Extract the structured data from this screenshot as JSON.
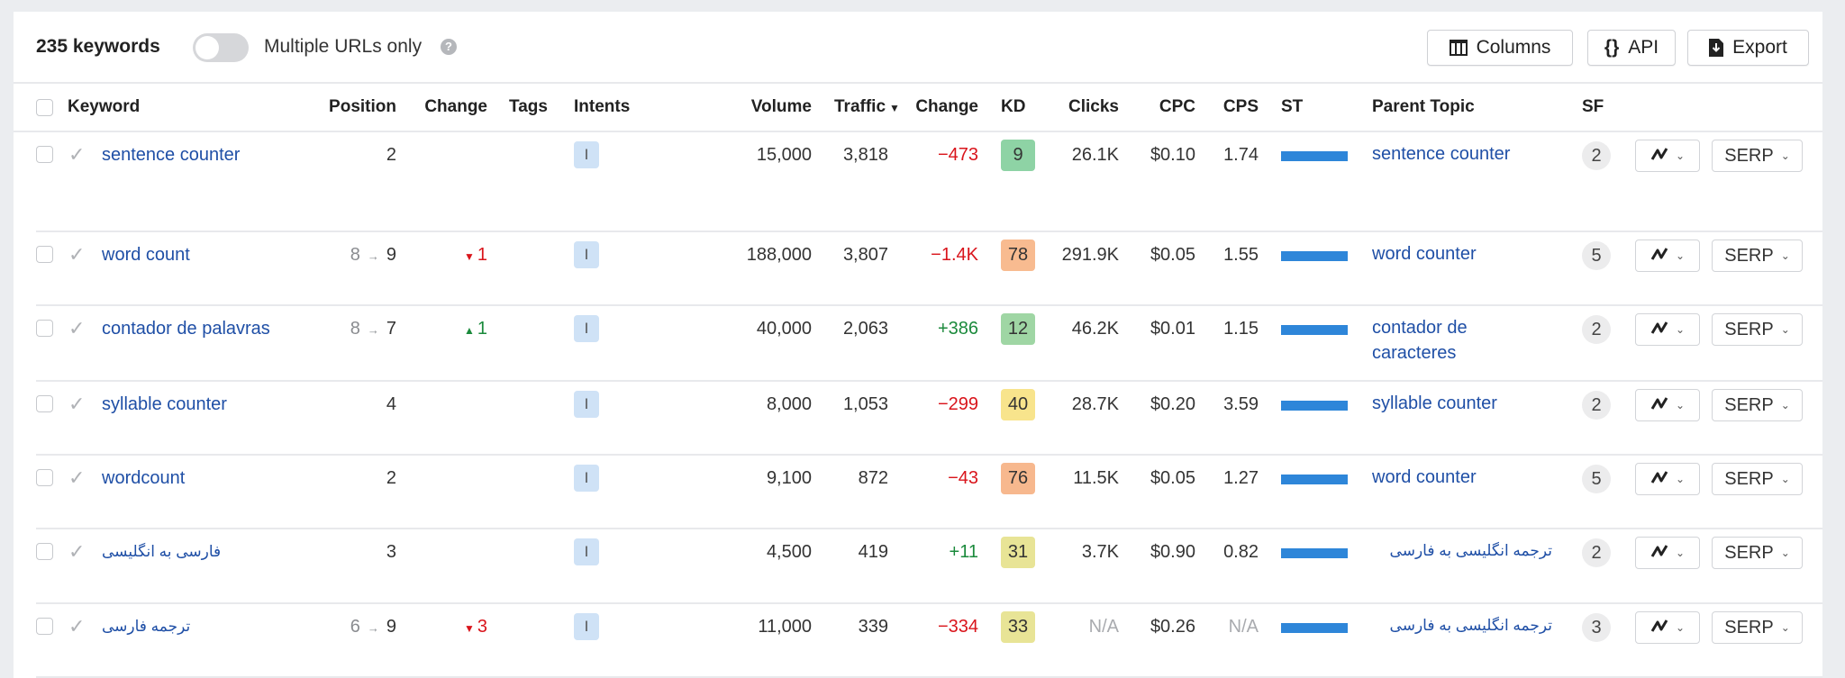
{
  "toolbar": {
    "keyword_count": "235 keywords",
    "multiple_urls_label": "Multiple URLs only",
    "multiple_urls_enabled": false,
    "help_icon": "?",
    "columns_label": "Columns",
    "api_label": "API",
    "export_label": "Export"
  },
  "columns": {
    "keyword": "Keyword",
    "position": "Position",
    "change": "Change",
    "tags": "Tags",
    "intents": "Intents",
    "volume": "Volume",
    "traffic": "Traffic",
    "traffic_sort": "▼",
    "traffic_change": "Change",
    "kd": "KD",
    "clicks": "Clicks",
    "cpc": "CPC",
    "cps": "CPS",
    "st": "ST",
    "parent_topic": "Parent Topic",
    "sf": "SF"
  },
  "colors": {
    "link": "#1f4fa6",
    "negative": "#d9141b",
    "positive": "#1b8a3c",
    "st_bar": "#2e86d9",
    "intent_badge": "#cfe2f6"
  },
  "serp_label": "SERP",
  "rows": [
    {
      "keyword": "sentence counter",
      "rtl": false,
      "prev_position": "",
      "position": "2",
      "pos_change": "",
      "pos_dir": "",
      "intent": "I",
      "volume": "15,000",
      "traffic": "3,818",
      "traffic_change": "−473",
      "traffic_dir": "down",
      "kd": "9",
      "kd_color": "#8ed3a5",
      "clicks": "26.1K",
      "cpc": "$0.10",
      "cps": "1.74",
      "parent_topic": "sentence counter",
      "sf": "2"
    },
    {
      "keyword": "word count",
      "rtl": false,
      "prev_position": "8",
      "position": "9",
      "pos_change": "1",
      "pos_dir": "down",
      "intent": "I",
      "volume": "188,000",
      "traffic": "3,807",
      "traffic_change": "−1.4K",
      "traffic_dir": "down",
      "kd": "78",
      "kd_color": "#f8bb90",
      "clicks": "291.9K",
      "cpc": "$0.05",
      "cps": "1.55",
      "parent_topic": "word counter",
      "sf": "5"
    },
    {
      "keyword": "contador de palavras",
      "rtl": false,
      "prev_position": "8",
      "position": "7",
      "pos_change": "1",
      "pos_dir": "up",
      "intent": "I",
      "volume": "40,000",
      "traffic": "2,063",
      "traffic_change": "+386",
      "traffic_dir": "up",
      "kd": "12",
      "kd_color": "#9fd6a4",
      "clicks": "46.2K",
      "cpc": "$0.01",
      "cps": "1.15",
      "parent_topic": "contador de caracteres",
      "sf": "2"
    },
    {
      "keyword": "syllable counter",
      "rtl": false,
      "prev_position": "",
      "position": "4",
      "pos_change": "",
      "pos_dir": "",
      "intent": "I",
      "volume": "8,000",
      "traffic": "1,053",
      "traffic_change": "−299",
      "traffic_dir": "down",
      "kd": "40",
      "kd_color": "#f8e48c",
      "clicks": "28.7K",
      "cpc": "$0.20",
      "cps": "3.59",
      "parent_topic": "syllable counter",
      "sf": "2"
    },
    {
      "keyword": "wordcount",
      "rtl": false,
      "prev_position": "",
      "position": "2",
      "pos_change": "",
      "pos_dir": "",
      "intent": "I",
      "volume": "9,100",
      "traffic": "872",
      "traffic_change": "−43",
      "traffic_dir": "down",
      "kd": "76",
      "kd_color": "#f7b88e",
      "clicks": "11.5K",
      "cpc": "$0.05",
      "cps": "1.27",
      "parent_topic": "word counter",
      "sf": "5"
    },
    {
      "keyword": "فارسی به انگلیسی",
      "rtl": true,
      "prev_position": "",
      "position": "3",
      "pos_change": "",
      "pos_dir": "",
      "intent": "I",
      "volume": "4,500",
      "traffic": "419",
      "traffic_change": "+11",
      "traffic_dir": "up",
      "kd": "31",
      "kd_color": "#e8e496",
      "clicks": "3.7K",
      "cpc": "$0.90",
      "cps": "0.82",
      "parent_topic": "ترجمه انگلیسی به فارسی",
      "sf": "2"
    },
    {
      "keyword": "ترجمه فارسی",
      "rtl": true,
      "prev_position": "6",
      "position": "9",
      "pos_change": "3",
      "pos_dir": "down",
      "intent": "I",
      "volume": "11,000",
      "traffic": "339",
      "traffic_change": "−334",
      "traffic_dir": "down",
      "kd": "33",
      "kd_color": "#e8e496",
      "clicks": "N/A",
      "cpc": "$0.26",
      "cps": "N/A",
      "parent_topic": "ترجمه انگلیسی به فارسی",
      "sf": "3"
    }
  ]
}
